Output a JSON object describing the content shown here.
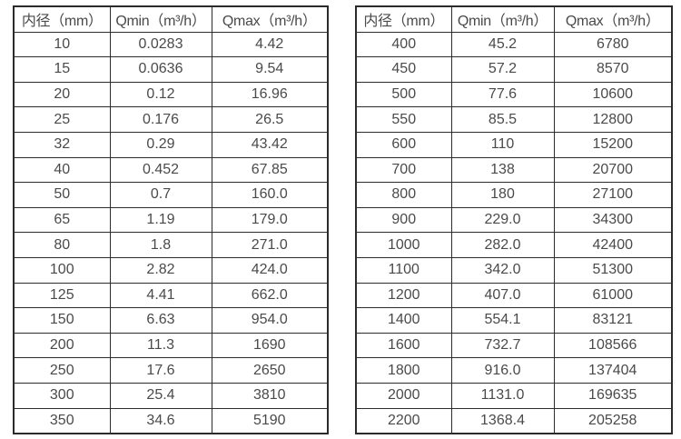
{
  "page": {
    "background": "#ffffff"
  },
  "colors": {
    "border": "#2b2b2b",
    "text": "#4a4a4a"
  },
  "tables": [
    {
      "name": "flow-range-table-small-diameters",
      "headers": [
        "内径（mm）",
        "Qmin（m³/h）",
        "Qmax（m³/h）"
      ],
      "rows": [
        [
          "10",
          "0.0283",
          "4.42"
        ],
        [
          "15",
          "0.0636",
          "9.54"
        ],
        [
          "20",
          "0.12",
          "16.96"
        ],
        [
          "25",
          "0.176",
          "26.5"
        ],
        [
          "32",
          "0.29",
          "43.42"
        ],
        [
          "40",
          "0.452",
          "67.85"
        ],
        [
          "50",
          "0.7",
          "160.0"
        ],
        [
          "65",
          "1.19",
          "179.0"
        ],
        [
          "80",
          "1.8",
          "271.0"
        ],
        [
          "100",
          "2.82",
          "424.0"
        ],
        [
          "125",
          "4.41",
          "662.0"
        ],
        [
          "150",
          "6.63",
          "954.0"
        ],
        [
          "200",
          "11.3",
          "1690"
        ],
        [
          "250",
          "17.6",
          "2650"
        ],
        [
          "300",
          "25.4",
          "3810"
        ],
        [
          "350",
          "34.6",
          "5190"
        ]
      ]
    },
    {
      "name": "flow-range-table-large-diameters",
      "headers": [
        "内径（mm）",
        "Qmin（m³/h）",
        "Qmax（m³/h）"
      ],
      "rows": [
        [
          "400",
          "45.2",
          "6780"
        ],
        [
          "450",
          "57.2",
          "8570"
        ],
        [
          "500",
          "77.6",
          "10600"
        ],
        [
          "550",
          "85.5",
          "12800"
        ],
        [
          "600",
          "110",
          "15200"
        ],
        [
          "700",
          "138",
          "20700"
        ],
        [
          "800",
          "180",
          "27100"
        ],
        [
          "900",
          "229.0",
          "34300"
        ],
        [
          "1000",
          "282.0",
          "42400"
        ],
        [
          "1100",
          "342.0",
          "51300"
        ],
        [
          "1200",
          "407.0",
          "61000"
        ],
        [
          "1400",
          "554.1",
          "83121"
        ],
        [
          "1600",
          "732.7",
          "108566"
        ],
        [
          "1800",
          "916.0",
          "137404"
        ],
        [
          "2000",
          "1131.0",
          "169635"
        ],
        [
          "2200",
          "1368.4",
          "205258"
        ]
      ]
    }
  ]
}
